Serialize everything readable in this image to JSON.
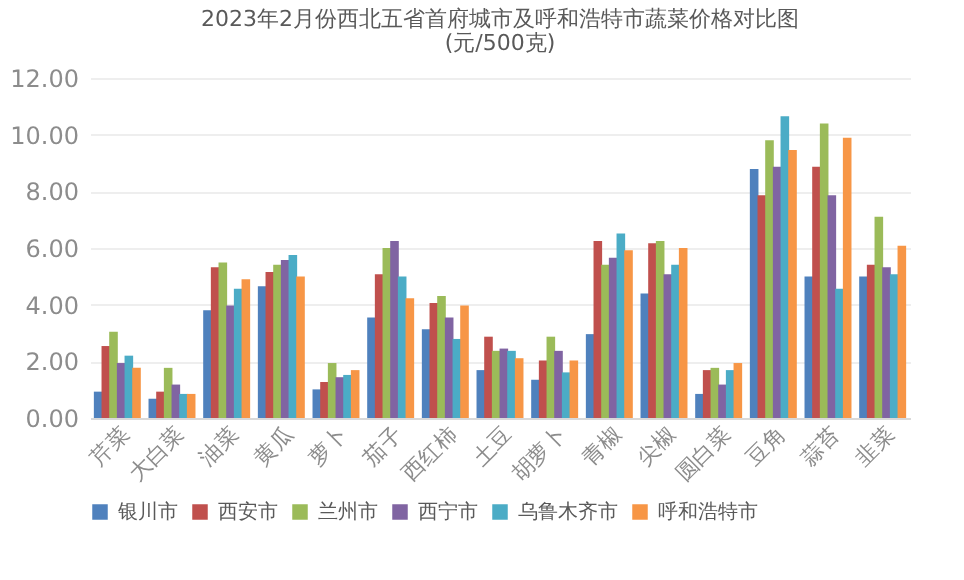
{
  "chart_data": {
    "type": "bar",
    "title": "2023年2月份西北五省首府城市及呼和浩特市蔬菜价格对比图",
    "subtitle": "(元/500克)",
    "categories": [
      "芹菜",
      "大白菜",
      "油菜",
      "黄瓜",
      "萝卜",
      "茄子",
      "西红柿",
      "土豆",
      "胡萝卜",
      "青椒",
      "尖椒",
      "圆白菜",
      "豆角",
      "蒜苔",
      "韭菜"
    ],
    "series": [
      {
        "name": "银川市",
        "color": "#4f81bd",
        "values": [
          0.93,
          0.68,
          3.8,
          4.65,
          1.01,
          3.55,
          3.13,
          1.69,
          1.35,
          2.96,
          4.39,
          0.85,
          8.79,
          4.99,
          4.99
        ]
      },
      {
        "name": "西安市",
        "color": "#c0504d",
        "values": [
          2.54,
          0.93,
          5.32,
          5.15,
          1.27,
          5.07,
          4.06,
          2.87,
          2.03,
          6.25,
          6.17,
          1.69,
          7.86,
          8.87,
          5.41
        ]
      },
      {
        "name": "兰州市",
        "color": "#9bbb59",
        "values": [
          3.04,
          1.77,
          5.49,
          5.41,
          1.94,
          6.0,
          4.31,
          2.37,
          2.87,
          5.41,
          6.25,
          1.77,
          9.8,
          10.39,
          7.1
        ]
      },
      {
        "name": "西宁市",
        "color": "#8064a2",
        "values": [
          1.94,
          1.18,
          3.97,
          5.58,
          1.44,
          6.25,
          3.55,
          2.45,
          2.37,
          5.66,
          5.07,
          1.18,
          8.87,
          7.86,
          5.32
        ]
      },
      {
        "name": "乌鲁木齐市",
        "color": "#4bacc6",
        "values": [
          2.2,
          0.85,
          4.56,
          5.75,
          1.52,
          4.99,
          2.79,
          2.37,
          1.61,
          6.51,
          5.41,
          1.69,
          10.65,
          4.56,
          5.07
        ]
      },
      {
        "name": "呼和浩特市",
        "color": "#f79646",
        "values": [
          1.77,
          0.85,
          4.9,
          4.99,
          1.69,
          4.23,
          3.97,
          2.11,
          2.03,
          5.92,
          6.0,
          1.94,
          9.46,
          9.89,
          6.08
        ]
      }
    ],
    "ylim": [
      0,
      12
    ],
    "yticks": [
      {
        "value": 0,
        "label": "0.00"
      },
      {
        "value": 2,
        "label": "2.00"
      },
      {
        "value": 4,
        "label": "4.00"
      },
      {
        "value": 6,
        "label": "6.00"
      },
      {
        "value": 8,
        "label": "8.00"
      },
      {
        "value": 10,
        "label": "10.00"
      },
      {
        "value": 12,
        "label": "12.00"
      }
    ],
    "grid": "y",
    "legend": "bottom"
  }
}
